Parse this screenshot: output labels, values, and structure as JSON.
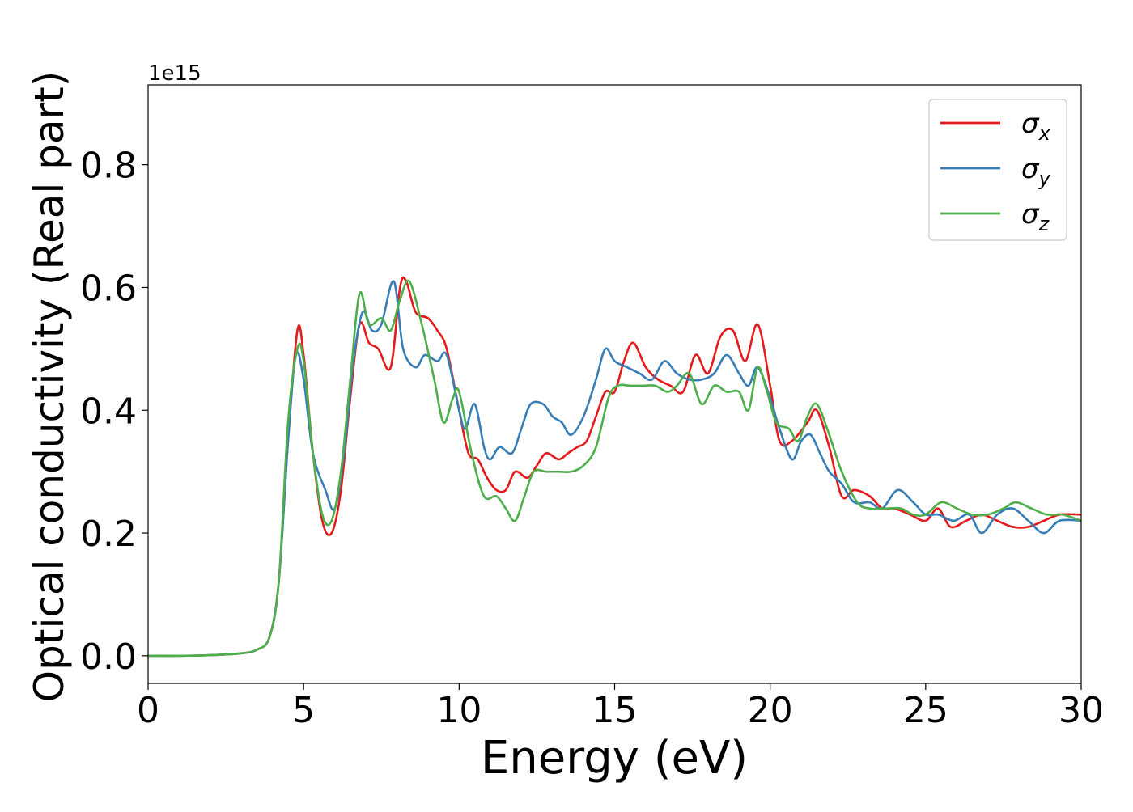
{
  "chart_data": {
    "type": "line",
    "title": "",
    "xlabel": "Energy (eV)",
    "ylabel": "Optical conductivity (Real part)",
    "y_offset_text": "1e15",
    "xlim": [
      0,
      30
    ],
    "ylim": [
      -0.045,
      0.93
    ],
    "x_ticks": [
      0,
      5,
      10,
      15,
      20,
      25,
      30
    ],
    "x_tick_labels": [
      "0",
      "5",
      "10",
      "15",
      "20",
      "25",
      "30"
    ],
    "y_ticks": [
      0.0,
      0.2,
      0.4,
      0.6,
      0.8
    ],
    "y_tick_labels": [
      "0.0",
      "0.2",
      "0.4",
      "0.6",
      "0.8"
    ],
    "grid": false,
    "legend_position": "top-right",
    "series": [
      {
        "name": "σx",
        "legend_base": "σ",
        "legend_sub": "x",
        "color": "#e41a1c",
        "points": [
          [
            0,
            0.0
          ],
          [
            1,
            0.0
          ],
          [
            2,
            0.001
          ],
          [
            3,
            0.004
          ],
          [
            3.5,
            0.01
          ],
          [
            3.9,
            0.03
          ],
          [
            4.2,
            0.12
          ],
          [
            4.5,
            0.35
          ],
          [
            4.8,
            0.53
          ],
          [
            5.0,
            0.49
          ],
          [
            5.3,
            0.33
          ],
          [
            5.6,
            0.22
          ],
          [
            5.9,
            0.2
          ],
          [
            6.2,
            0.27
          ],
          [
            6.5,
            0.42
          ],
          [
            6.8,
            0.54
          ],
          [
            7.1,
            0.51
          ],
          [
            7.4,
            0.5
          ],
          [
            7.8,
            0.47
          ],
          [
            8.1,
            0.6
          ],
          [
            8.3,
            0.61
          ],
          [
            8.6,
            0.56
          ],
          [
            9.0,
            0.55
          ],
          [
            9.3,
            0.53
          ],
          [
            9.6,
            0.5
          ],
          [
            10.0,
            0.4
          ],
          [
            10.3,
            0.33
          ],
          [
            10.6,
            0.32
          ],
          [
            10.9,
            0.29
          ],
          [
            11.2,
            0.27
          ],
          [
            11.5,
            0.27
          ],
          [
            11.8,
            0.3
          ],
          [
            12.2,
            0.29
          ],
          [
            12.5,
            0.31
          ],
          [
            12.8,
            0.33
          ],
          [
            13.2,
            0.32
          ],
          [
            13.5,
            0.33
          ],
          [
            13.8,
            0.34
          ],
          [
            14.1,
            0.35
          ],
          [
            14.4,
            0.39
          ],
          [
            14.7,
            0.43
          ],
          [
            15.0,
            0.43
          ],
          [
            15.3,
            0.48
          ],
          [
            15.6,
            0.51
          ],
          [
            16.0,
            0.47
          ],
          [
            16.4,
            0.45
          ],
          [
            16.8,
            0.44
          ],
          [
            17.2,
            0.43
          ],
          [
            17.6,
            0.49
          ],
          [
            18.0,
            0.46
          ],
          [
            18.4,
            0.52
          ],
          [
            18.8,
            0.53
          ],
          [
            19.2,
            0.48
          ],
          [
            19.6,
            0.54
          ],
          [
            20.0,
            0.44
          ],
          [
            20.3,
            0.35
          ],
          [
            20.7,
            0.35
          ],
          [
            21.2,
            0.38
          ],
          [
            21.5,
            0.4
          ],
          [
            21.9,
            0.34
          ],
          [
            22.3,
            0.26
          ],
          [
            22.7,
            0.27
          ],
          [
            23.2,
            0.26
          ],
          [
            23.6,
            0.24
          ],
          [
            24.0,
            0.24
          ],
          [
            24.5,
            0.23
          ],
          [
            25.0,
            0.22
          ],
          [
            25.4,
            0.24
          ],
          [
            25.8,
            0.21
          ],
          [
            26.3,
            0.22
          ],
          [
            26.8,
            0.23
          ],
          [
            27.3,
            0.22
          ],
          [
            27.8,
            0.21
          ],
          [
            28.3,
            0.21
          ],
          [
            28.8,
            0.22
          ],
          [
            29.3,
            0.23
          ],
          [
            30.0,
            0.23
          ]
        ]
      },
      {
        "name": "σy",
        "legend_base": "σ",
        "legend_sub": "y",
        "color": "#377eb8",
        "points": [
          [
            0,
            0.0
          ],
          [
            1,
            0.0
          ],
          [
            2,
            0.001
          ],
          [
            3,
            0.004
          ],
          [
            3.5,
            0.01
          ],
          [
            3.9,
            0.03
          ],
          [
            4.2,
            0.12
          ],
          [
            4.5,
            0.35
          ],
          [
            4.75,
            0.49
          ],
          [
            5.0,
            0.45
          ],
          [
            5.3,
            0.33
          ],
          [
            5.7,
            0.27
          ],
          [
            6.0,
            0.24
          ],
          [
            6.3,
            0.33
          ],
          [
            6.6,
            0.48
          ],
          [
            6.9,
            0.56
          ],
          [
            7.2,
            0.53
          ],
          [
            7.5,
            0.54
          ],
          [
            7.9,
            0.61
          ],
          [
            8.2,
            0.5
          ],
          [
            8.6,
            0.47
          ],
          [
            8.9,
            0.49
          ],
          [
            9.3,
            0.48
          ],
          [
            9.6,
            0.49
          ],
          [
            10.0,
            0.4
          ],
          [
            10.2,
            0.37
          ],
          [
            10.5,
            0.41
          ],
          [
            10.8,
            0.34
          ],
          [
            11.0,
            0.32
          ],
          [
            11.3,
            0.34
          ],
          [
            11.7,
            0.33
          ],
          [
            12.0,
            0.37
          ],
          [
            12.3,
            0.41
          ],
          [
            12.7,
            0.41
          ],
          [
            13.0,
            0.39
          ],
          [
            13.3,
            0.38
          ],
          [
            13.6,
            0.36
          ],
          [
            14.0,
            0.39
          ],
          [
            14.4,
            0.45
          ],
          [
            14.7,
            0.5
          ],
          [
            15.0,
            0.48
          ],
          [
            15.4,
            0.47
          ],
          [
            15.8,
            0.46
          ],
          [
            16.2,
            0.45
          ],
          [
            16.6,
            0.48
          ],
          [
            17.0,
            0.46
          ],
          [
            17.4,
            0.45
          ],
          [
            17.8,
            0.45
          ],
          [
            18.2,
            0.46
          ],
          [
            18.6,
            0.49
          ],
          [
            19.0,
            0.46
          ],
          [
            19.3,
            0.44
          ],
          [
            19.6,
            0.47
          ],
          [
            20.0,
            0.42
          ],
          [
            20.3,
            0.37
          ],
          [
            20.7,
            0.32
          ],
          [
            21.0,
            0.35
          ],
          [
            21.3,
            0.36
          ],
          [
            21.6,
            0.33
          ],
          [
            21.9,
            0.3
          ],
          [
            22.3,
            0.28
          ],
          [
            22.7,
            0.25
          ],
          [
            23.2,
            0.25
          ],
          [
            23.6,
            0.24
          ],
          [
            24.1,
            0.27
          ],
          [
            24.6,
            0.25
          ],
          [
            25.0,
            0.23
          ],
          [
            25.4,
            0.23
          ],
          [
            25.9,
            0.22
          ],
          [
            26.4,
            0.23
          ],
          [
            26.8,
            0.2
          ],
          [
            27.3,
            0.23
          ],
          [
            27.8,
            0.24
          ],
          [
            28.3,
            0.22
          ],
          [
            28.8,
            0.2
          ],
          [
            29.3,
            0.22
          ],
          [
            30.0,
            0.22
          ]
        ]
      },
      {
        "name": "σz",
        "legend_base": "σ",
        "legend_sub": "z",
        "color": "#4daf4a",
        "points": [
          [
            0,
            0.0
          ],
          [
            1,
            0.0
          ],
          [
            2,
            0.001
          ],
          [
            3,
            0.004
          ],
          [
            3.5,
            0.01
          ],
          [
            3.9,
            0.03
          ],
          [
            4.2,
            0.12
          ],
          [
            4.5,
            0.38
          ],
          [
            4.8,
            0.5
          ],
          [
            5.0,
            0.48
          ],
          [
            5.3,
            0.33
          ],
          [
            5.6,
            0.23
          ],
          [
            5.9,
            0.22
          ],
          [
            6.2,
            0.3
          ],
          [
            6.5,
            0.45
          ],
          [
            6.8,
            0.59
          ],
          [
            7.1,
            0.54
          ],
          [
            7.5,
            0.55
          ],
          [
            7.8,
            0.53
          ],
          [
            8.1,
            0.58
          ],
          [
            8.4,
            0.61
          ],
          [
            8.8,
            0.54
          ],
          [
            9.2,
            0.45
          ],
          [
            9.5,
            0.38
          ],
          [
            9.8,
            0.42
          ],
          [
            10.0,
            0.43
          ],
          [
            10.4,
            0.33
          ],
          [
            10.8,
            0.26
          ],
          [
            11.2,
            0.26
          ],
          [
            11.5,
            0.24
          ],
          [
            11.8,
            0.22
          ],
          [
            12.1,
            0.26
          ],
          [
            12.4,
            0.3
          ],
          [
            12.8,
            0.3
          ],
          [
            13.2,
            0.3
          ],
          [
            13.6,
            0.3
          ],
          [
            14.0,
            0.31
          ],
          [
            14.4,
            0.34
          ],
          [
            14.8,
            0.42
          ],
          [
            15.1,
            0.44
          ],
          [
            15.5,
            0.44
          ],
          [
            15.9,
            0.44
          ],
          [
            16.3,
            0.44
          ],
          [
            16.7,
            0.43
          ],
          [
            17.0,
            0.44
          ],
          [
            17.4,
            0.46
          ],
          [
            17.8,
            0.41
          ],
          [
            18.2,
            0.44
          ],
          [
            18.6,
            0.43
          ],
          [
            19.0,
            0.43
          ],
          [
            19.3,
            0.4
          ],
          [
            19.6,
            0.47
          ],
          [
            19.9,
            0.43
          ],
          [
            20.2,
            0.38
          ],
          [
            20.6,
            0.37
          ],
          [
            20.9,
            0.35
          ],
          [
            21.2,
            0.39
          ],
          [
            21.5,
            0.41
          ],
          [
            21.9,
            0.36
          ],
          [
            22.3,
            0.3
          ],
          [
            22.8,
            0.25
          ],
          [
            23.2,
            0.24
          ],
          [
            23.7,
            0.24
          ],
          [
            24.2,
            0.24
          ],
          [
            24.6,
            0.23
          ],
          [
            25.0,
            0.23
          ],
          [
            25.5,
            0.25
          ],
          [
            26.0,
            0.24
          ],
          [
            26.5,
            0.23
          ],
          [
            27.0,
            0.23
          ],
          [
            27.5,
            0.24
          ],
          [
            27.9,
            0.25
          ],
          [
            28.4,
            0.24
          ],
          [
            28.9,
            0.23
          ],
          [
            29.4,
            0.23
          ],
          [
            30.0,
            0.22
          ]
        ]
      }
    ]
  }
}
